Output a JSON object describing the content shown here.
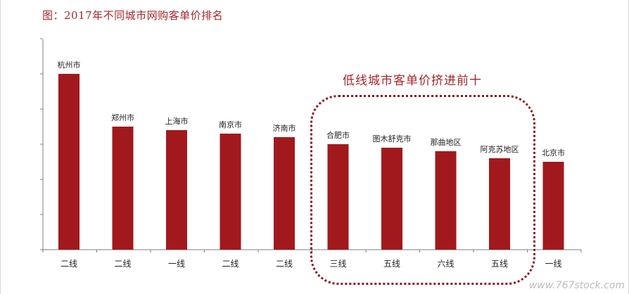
{
  "page": {
    "title": "图：2017年不同城市网购客单价排名",
    "annotation": "低线城市客单价挤进前十",
    "watermark": "www.767stock.com"
  },
  "colors": {
    "bar": "#a1191d",
    "title": "#a8262a",
    "highlight_border": "#8b1a1e"
  },
  "chart_data": {
    "type": "bar",
    "title": "图：2017年不同城市网购客单价排名",
    "xlabel": "",
    "ylabel": "",
    "ylim": [
      0,
      5
    ],
    "grid": false,
    "categories": [
      "二线",
      "二线",
      "一线",
      "二线",
      "二线",
      "三线",
      "五线",
      "六线",
      "五线",
      "一线"
    ],
    "bar_labels": [
      "杭州市",
      "郑州市",
      "上海市",
      "南京市",
      "济南市",
      "合肥市",
      "图木舒克市",
      "那曲地区",
      "阿克苏地区",
      "北京市"
    ],
    "values": [
      5.0,
      3.5,
      3.4,
      3.3,
      3.2,
      3.0,
      2.9,
      2.8,
      2.6,
      2.5
    ],
    "highlighted_indices": [
      5,
      6,
      7,
      8
    ]
  }
}
